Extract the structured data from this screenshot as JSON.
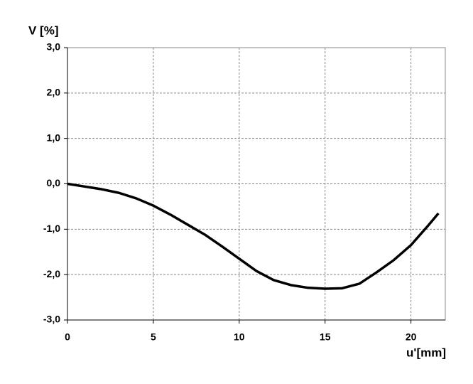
{
  "chart_data": {
    "type": "line",
    "x_label": "u'[mm]",
    "y_label": "V [%]",
    "x": [
      0,
      1,
      2,
      3,
      4,
      5,
      6,
      7,
      8,
      9,
      10,
      11,
      12,
      13,
      14,
      15,
      16,
      17,
      18,
      19,
      20,
      21,
      21.6
    ],
    "series": [
      {
        "color": "#000000",
        "values": [
          0,
          -0.06,
          -0.12,
          -0.2,
          -0.32,
          -0.48,
          -0.68,
          -0.9,
          -1.12,
          -1.38,
          -1.65,
          -1.92,
          -2.12,
          -2.23,
          -2.29,
          -2.31,
          -2.3,
          -2.2,
          -1.95,
          -1.68,
          -1.35,
          -0.92,
          -0.65
        ]
      }
    ],
    "xlim": [
      0,
      22
    ],
    "xticks": [
      0,
      5,
      10,
      15,
      20
    ],
    "ylim": [
      -3,
      3
    ],
    "yticks": [
      {
        "value": -3,
        "label": "-3,0"
      },
      {
        "value": -2,
        "label": "-2,0"
      },
      {
        "value": -1,
        "label": "-1,0"
      },
      {
        "value": 0,
        "label": "0,0"
      },
      {
        "value": 1,
        "label": "1,0"
      },
      {
        "value": 2,
        "label": "2,0"
      },
      {
        "value": 3,
        "label": "3,0"
      }
    ],
    "grid": true
  }
}
